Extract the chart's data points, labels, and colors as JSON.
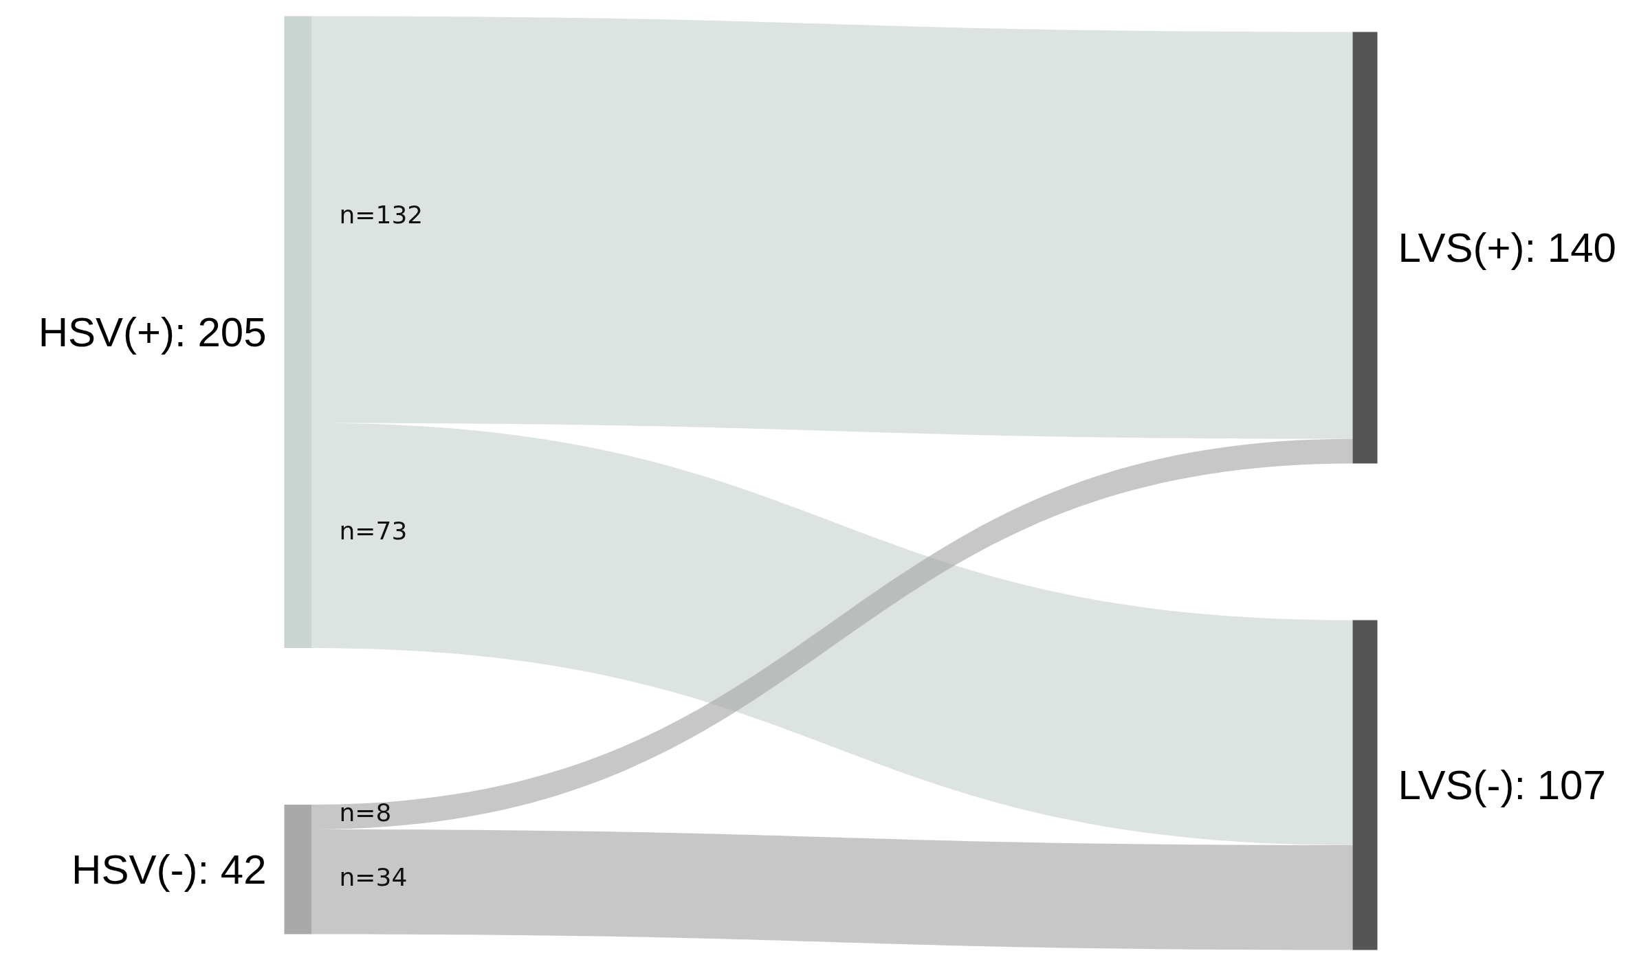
{
  "chart_data": {
    "type": "other",
    "categories": [
      "HSV(+): 205",
      "HSV(-): 42"
    ],
    "colors": [
      "#cad4d1",
      "#a9a9a9",
      "#555555",
      "#555555"
    ],
    "series": [
      {
        "name": "LVS(+): 140",
        "colors": [
          "#cad4d1",
          "#a9a9a9"
        ],
        "values": [
          132,
          8
        ],
        "value_labels": [
          "n=132",
          "n=8"
        ]
      },
      {
        "name": "LVS(-): 107",
        "colors": [
          "#cad4d1",
          "#a9a9a9"
        ],
        "values": [
          73,
          34
        ],
        "value_labels": [
          "n=73",
          "n=34"
        ]
      }
    ]
  }
}
